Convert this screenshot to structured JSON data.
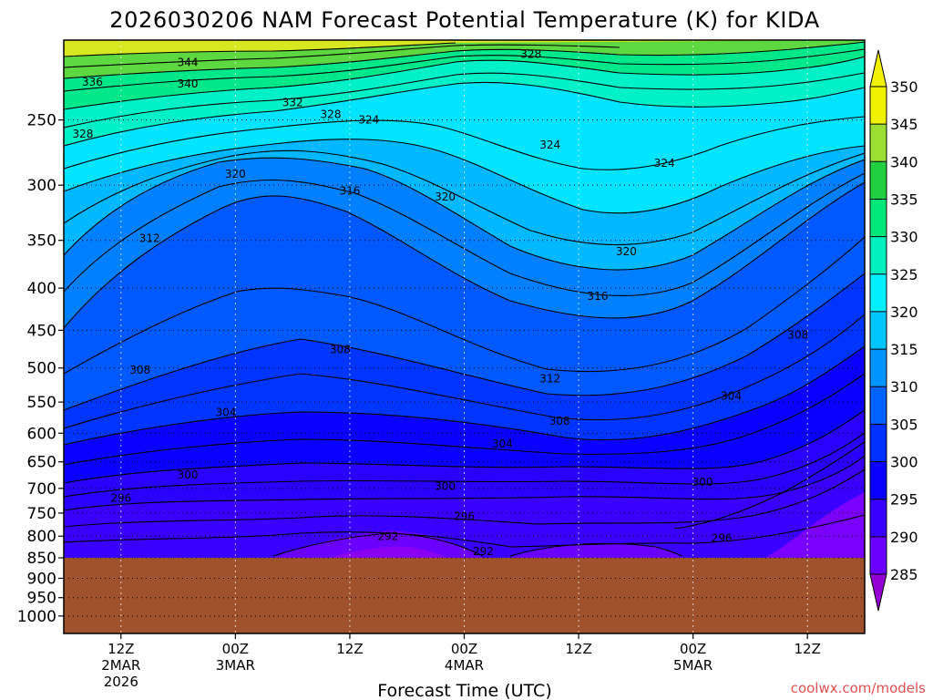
{
  "chart_data": {
    "type": "contour",
    "title": "2026030206 NAM Forecast Potential Temperature (K) for KIDA",
    "xlabel": "Forecast Time (UTC)",
    "ylabel": "",
    "credit": "coolwx.com/models",
    "ylim": [
      1050,
      200
    ],
    "y_ticks": [
      250,
      300,
      350,
      400,
      450,
      500,
      550,
      600,
      650,
      700,
      750,
      800,
      850,
      900,
      950,
      1000
    ],
    "x_ticks": [
      {
        "hour": 6,
        "line1": "12Z",
        "line2": "2MAR",
        "line3": "2026"
      },
      {
        "hour": 18,
        "line1": "00Z",
        "line2": "3MAR",
        "line3": ""
      },
      {
        "hour": 30,
        "line1": "12Z",
        "line2": "",
        "line3": ""
      },
      {
        "hour": 42,
        "line1": "00Z",
        "line2": "4MAR",
        "line3": ""
      },
      {
        "hour": 54,
        "line1": "12Z",
        "line2": "",
        "line3": ""
      },
      {
        "hour": 66,
        "line1": "00Z",
        "line2": "5MAR",
        "line3": ""
      },
      {
        "hour": 78,
        "line1": "12Z",
        "line2": "",
        "line3": ""
      }
    ],
    "xlim": [
      0,
      84
    ],
    "ground_level_hpa": 850,
    "ground_color": "#a0522d",
    "colorbar": {
      "min": 285,
      "max": 350,
      "ticks": [
        285,
        290,
        295,
        300,
        305,
        310,
        315,
        320,
        325,
        330,
        335,
        340,
        345,
        350
      ],
      "colors": [
        "#9400d3",
        "#6a00ff",
        "#3a00ff",
        "#0a00ff",
        "#0030ff",
        "#0062ff",
        "#0094ff",
        "#00c6ff",
        "#00f0ff",
        "#00f0c0",
        "#00e87a",
        "#20d040",
        "#9be030",
        "#f0f000"
      ]
    },
    "sample_columns": [
      {
        "hour": 0,
        "levels_hpa": [
          850,
          700,
          500,
          300,
          250
        ],
        "theta_k": [
          292,
          298,
          306,
          316,
          326
        ]
      },
      {
        "hour": 18,
        "levels_hpa": [
          850,
          700,
          500,
          300,
          250
        ],
        "theta_k": [
          293,
          299,
          308,
          318,
          328
        ]
      },
      {
        "hour": 42,
        "levels_hpa": [
          850,
          700,
          500,
          300,
          250
        ],
        "theta_k": [
          292,
          300,
          310,
          320,
          324
        ]
      },
      {
        "hour": 66,
        "levels_hpa": [
          850,
          700,
          500,
          300,
          250
        ],
        "theta_k": [
          294,
          300,
          308,
          320,
          326
        ]
      },
      {
        "hour": 84,
        "levels_hpa": [
          850,
          700,
          500,
          300,
          250
        ],
        "theta_k": [
          292,
          296,
          306,
          316,
          324
        ]
      }
    ],
    "contour_labels": [
      {
        "text": "344",
        "hour": 13,
        "p": 213
      },
      {
        "text": "336",
        "hour": 3,
        "p": 225
      },
      {
        "text": "340",
        "hour": 13,
        "p": 226
      },
      {
        "text": "332",
        "hour": 24,
        "p": 238
      },
      {
        "text": "328",
        "hour": 28,
        "p": 246
      },
      {
        "text": "324",
        "hour": 32,
        "p": 250
      },
      {
        "text": "328",
        "hour": 49,
        "p": 208
      },
      {
        "text": "328",
        "hour": 2,
        "p": 260
      },
      {
        "text": "324",
        "hour": 51,
        "p": 268
      },
      {
        "text": "324",
        "hour": 63,
        "p": 282
      },
      {
        "text": "320",
        "hour": 18,
        "p": 291
      },
      {
        "text": "316",
        "hour": 30,
        "p": 305
      },
      {
        "text": "320",
        "hour": 40,
        "p": 310
      },
      {
        "text": "312",
        "hour": 9,
        "p": 348
      },
      {
        "text": "320",
        "hour": 59,
        "p": 361
      },
      {
        "text": "316",
        "hour": 56,
        "p": 409
      },
      {
        "text": "308",
        "hour": 29,
        "p": 475
      },
      {
        "text": "308",
        "hour": 8,
        "p": 503
      },
      {
        "text": "312",
        "hour": 51,
        "p": 515
      },
      {
        "text": "308",
        "hour": 77,
        "p": 456
      },
      {
        "text": "304",
        "hour": 17,
        "p": 566
      },
      {
        "text": "304",
        "hour": 70,
        "p": 541
      },
      {
        "text": "308",
        "hour": 52,
        "p": 580
      },
      {
        "text": "304",
        "hour": 46,
        "p": 618
      },
      {
        "text": "300",
        "hour": 13,
        "p": 674
      },
      {
        "text": "300",
        "hour": 40,
        "p": 696
      },
      {
        "text": "300",
        "hour": 67,
        "p": 688
      },
      {
        "text": "296",
        "hour": 6,
        "p": 719
      },
      {
        "text": "296",
        "hour": 42,
        "p": 757
      },
      {
        "text": "296",
        "hour": 69,
        "p": 805
      },
      {
        "text": "292",
        "hour": 34,
        "p": 801
      },
      {
        "text": "292",
        "hour": 44,
        "p": 835
      }
    ]
  }
}
